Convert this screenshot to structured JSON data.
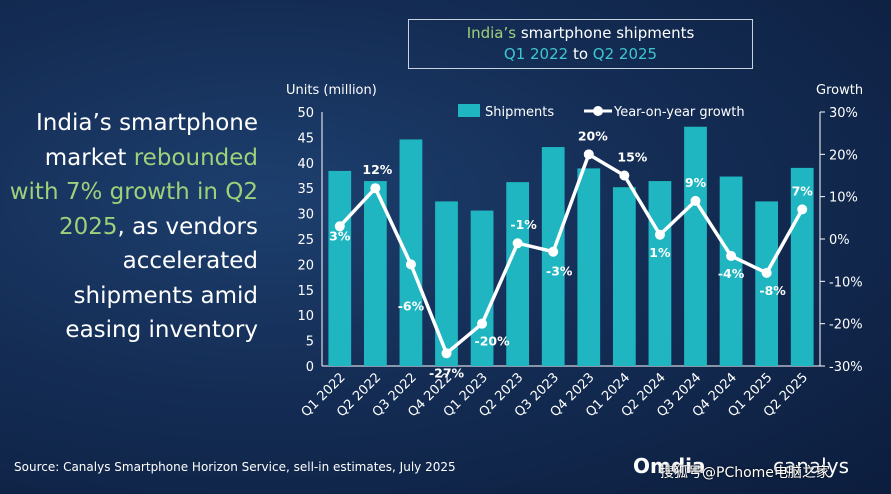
{
  "title": {
    "line1_part1": "India’s",
    "line1_part2": " smartphone shipments",
    "line2_part1": "Q1 2022",
    "line2_part2": " to ",
    "line2_part3": "Q2 2025"
  },
  "headline": {
    "part1": "India’s smartphone market ",
    "part2": "rebounded with 7% growth in Q2 2025",
    "part3": ", as vendors accelerated shipments amid easing inventory"
  },
  "source": "Source: Canalys Smartphone Horizon Service, sell-in estimates, July 2025",
  "logos": {
    "omdia": "Omdia",
    "canalys": "canalys"
  },
  "watermark": "搜狐号@PChome电脑之家",
  "colors": {
    "bar": "#1fb6c1",
    "line": "#ffffff",
    "highlight_green": "#9fd07a",
    "highlight_cyan": "#3ec6d2"
  },
  "chart_data": {
    "type": "bar",
    "categories": [
      "Q1 2022",
      "Q2 2022",
      "Q3 2022",
      "Q4 2022",
      "Q1 2023",
      "Q2 2023",
      "Q3 2023",
      "Q4 2023",
      "Q1 2024",
      "Q2 2024",
      "Q3 2024",
      "Q4 2024",
      "Q1 2025",
      "Q2 2025"
    ],
    "series": [
      {
        "name": "Shipments",
        "type": "bar",
        "axis": "left",
        "values": [
          38.4,
          36.4,
          44.6,
          32.4,
          30.6,
          36.2,
          43.1,
          38.9,
          35.2,
          36.4,
          47.1,
          37.3,
          32.4,
          39.0
        ]
      },
      {
        "name": "Year-on-year growth",
        "type": "line",
        "axis": "right",
        "values": [
          3,
          12,
          -6,
          -27,
          -20,
          -1,
          -3,
          20,
          15,
          1,
          9,
          -4,
          -8,
          7
        ],
        "labels": [
          "3%",
          "12%",
          "-6%",
          "-27%",
          "-20%",
          "-1%",
          "-3%",
          "20%",
          "15%",
          "1%",
          "9%",
          "-4%",
          "-8%",
          "7%"
        ]
      }
    ],
    "ylabel_left": "Units (million)",
    "ylabel_right": "Growth",
    "ylim_left": [
      0,
      50
    ],
    "yticks_left": [
      "0",
      "5",
      "10",
      "15",
      "20",
      "25",
      "30",
      "35",
      "40",
      "45",
      "50"
    ],
    "ylim_right": [
      -30,
      30
    ],
    "yticks_right": [
      "-30%",
      "-20%",
      "-10%",
      "0%",
      "10%",
      "20%",
      "30%"
    ],
    "legend": [
      "Shipments",
      "Year-on-year growth"
    ],
    "legend_position": "top",
    "grid": false
  }
}
